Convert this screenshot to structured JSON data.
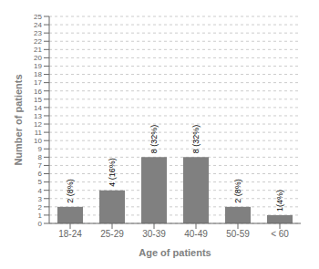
{
  "chart_data": {
    "type": "bar",
    "categories": [
      "18-24",
      "25-29",
      "30-39",
      "40-49",
      "50-59",
      "< 60"
    ],
    "values": [
      2,
      4,
      8,
      8,
      2,
      1
    ],
    "value_labels": [
      "2 (8%)",
      "4 (16%)",
      "8 (32%)",
      "8 (32%)",
      "2 (8%)",
      "1(4%)"
    ],
    "data_labels": true,
    "color": "#808080",
    "xlabel": "Age of patients",
    "ylabel": "Number of patients",
    "ylim": [
      0,
      25
    ],
    "yticks": [
      0,
      1,
      2,
      3,
      4,
      5,
      6,
      7,
      8,
      9,
      10,
      11,
      12,
      13,
      14,
      15,
      16,
      17,
      18,
      19,
      20,
      21,
      22,
      23,
      24,
      25
    ],
    "grid": true
  }
}
